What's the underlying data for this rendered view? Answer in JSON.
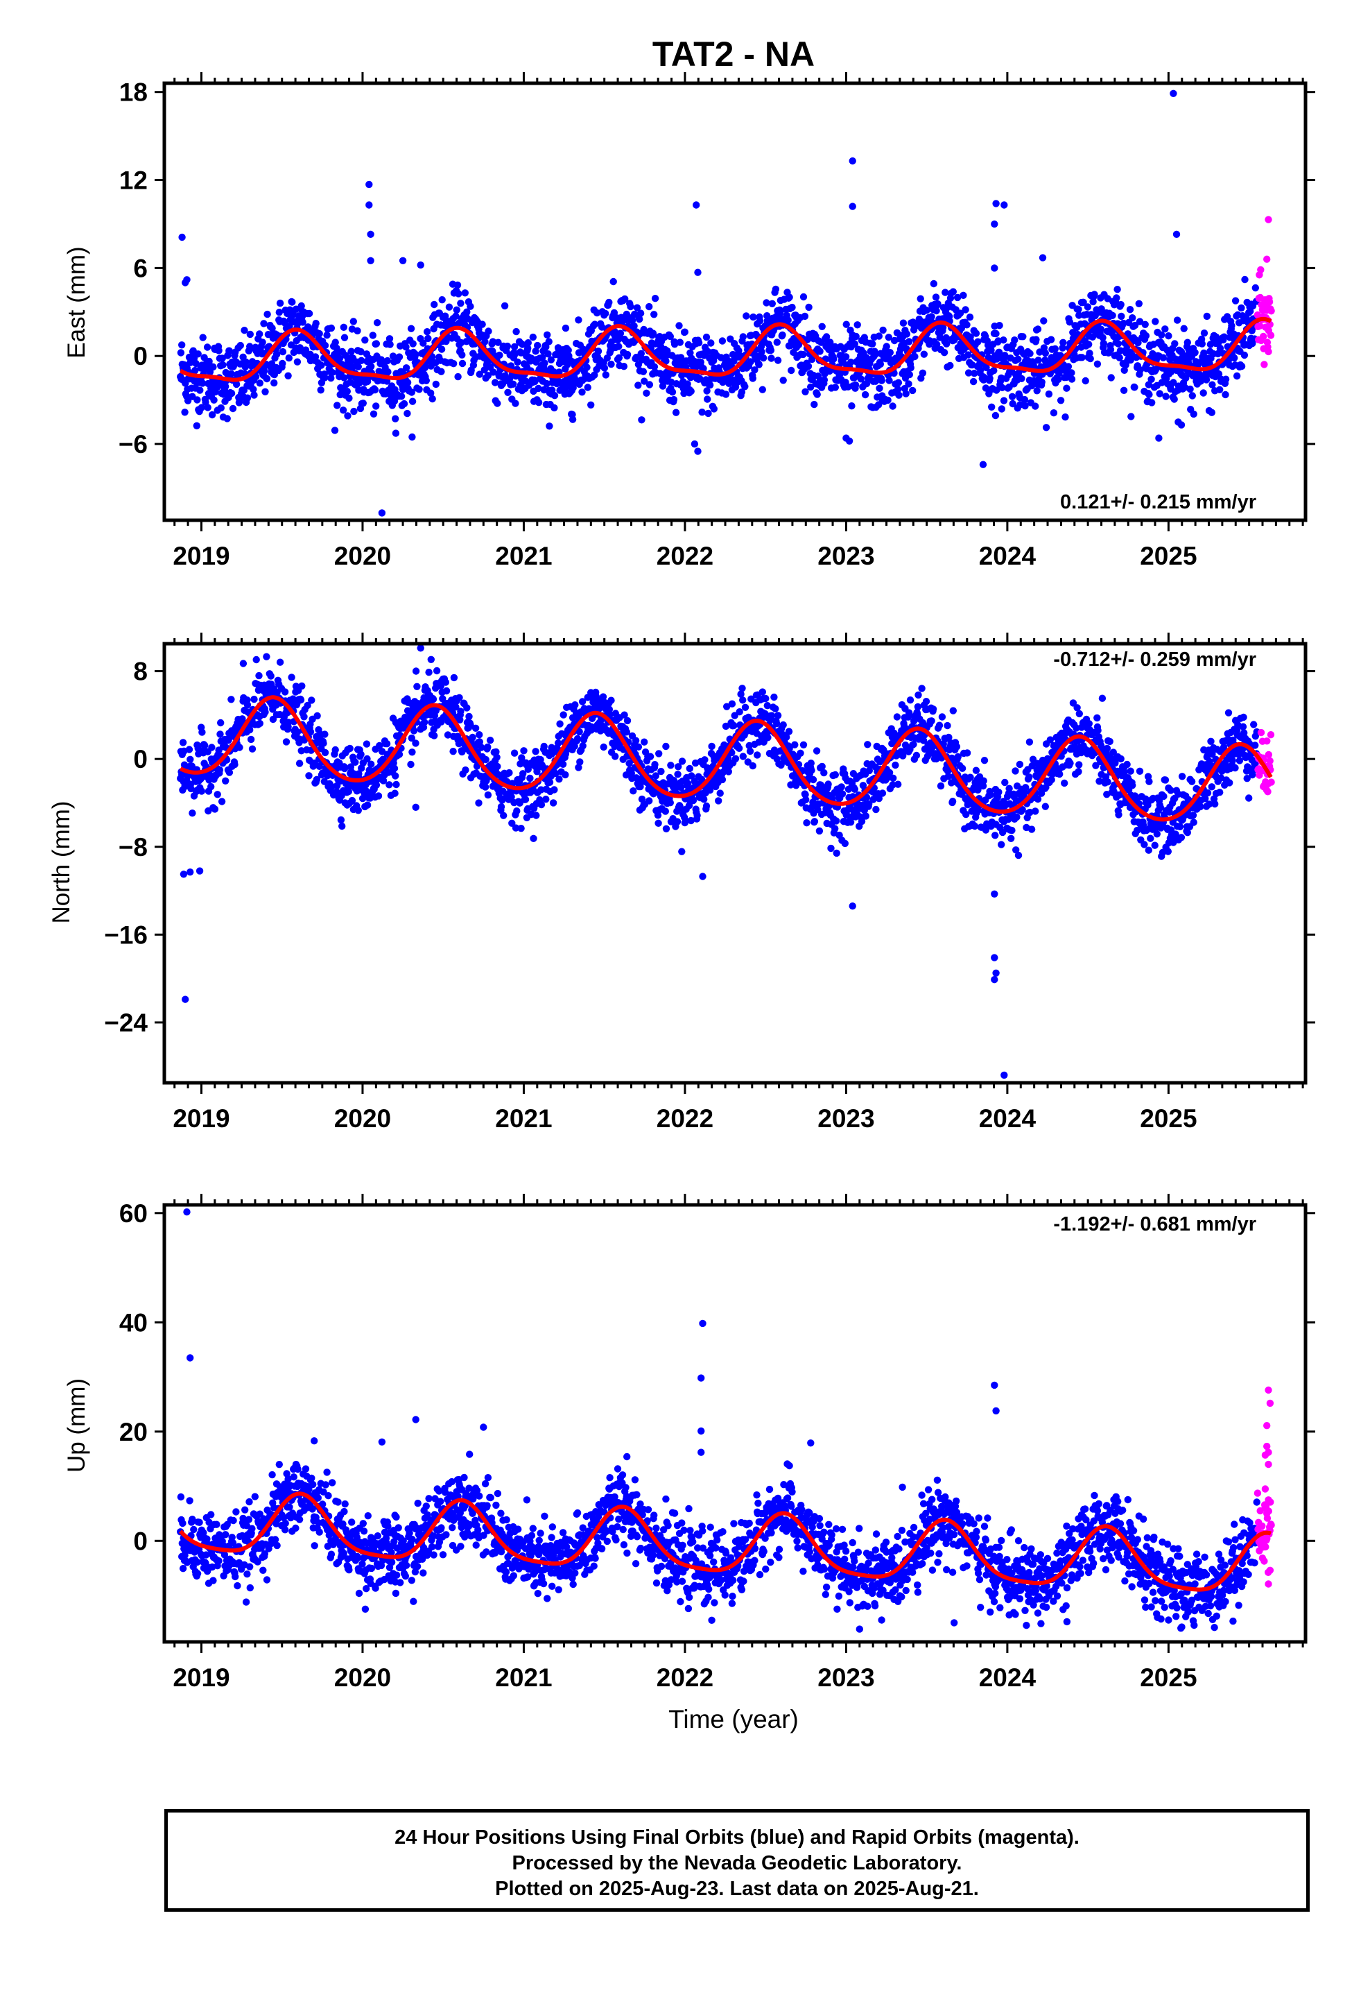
{
  "title": "TAT2 - NA",
  "x_axis_title": "Time (year)",
  "colors": {
    "final": "#0000ff",
    "rapid": "#ff00ff",
    "model": "#ff0000",
    "frame": "#000000"
  },
  "footer": {
    "line1": "24 Hour Positions Using Final Orbits (blue) and Rapid Orbits (magenta).",
    "line2": "Processed by the Nevada Geodetic Laboratory.",
    "line3": "Plotted on 2025-Aug-23. Last data on 2025-Aug-21."
  },
  "chart_data": [
    {
      "type": "scatter",
      "component": "east",
      "ylabel": "East (mm)",
      "xlim": [
        2018.77,
        2025.85
      ],
      "ylim": [
        -11.2,
        18.6
      ],
      "xticks": [
        2019,
        2020,
        2021,
        2022,
        2023,
        2024,
        2025
      ],
      "yticks": [
        -6,
        0,
        6,
        12,
        18
      ],
      "rate_label": "0.121+/- 0.215 mm/yr",
      "rate_position": "bottom-right",
      "model": {
        "slope": 0.121,
        "offset": 0.0,
        "t0": 2022.0,
        "annual_amp": 1.6,
        "annual_phase_peak": 2019.6,
        "semi_amp": 0.5,
        "semi_phase": 0.3
      },
      "noise_sd": 1.3,
      "start": 2018.87,
      "end_final": 2025.55,
      "end_rapid": 2025.64,
      "outliers": [
        [
          2018.88,
          8.1
        ],
        [
          2018.9,
          5.0
        ],
        [
          2018.91,
          5.2
        ],
        [
          2020.04,
          11.7
        ],
        [
          2020.04,
          10.3
        ],
        [
          2020.05,
          8.3
        ],
        [
          2020.05,
          6.5
        ],
        [
          2020.12,
          -10.7
        ],
        [
          2020.25,
          6.5
        ],
        [
          2020.36,
          6.2
        ],
        [
          2022.07,
          10.3
        ],
        [
          2022.08,
          5.7
        ],
        [
          2022.08,
          -6.5
        ],
        [
          2022.06,
          -6.0
        ],
        [
          2023.04,
          13.3
        ],
        [
          2023.04,
          10.2
        ],
        [
          2023.0,
          -5.6
        ],
        [
          2023.02,
          -5.8
        ],
        [
          2023.93,
          10.4
        ],
        [
          2023.98,
          10.3
        ],
        [
          2023.92,
          9.0
        ],
        [
          2023.92,
          6.0
        ],
        [
          2023.85,
          -7.4
        ],
        [
          2024.22,
          6.7
        ],
        [
          2025.03,
          17.9
        ],
        [
          2025.05,
          8.3
        ],
        [
          2024.94,
          -5.6
        ],
        [
          2025.08,
          -4.7
        ]
      ],
      "rapid_outliers": [
        [
          2025.62,
          9.3
        ],
        [
          2025.61,
          6.6
        ],
        [
          2025.59,
          0.5
        ],
        [
          2025.62,
          0.3
        ]
      ]
    },
    {
      "type": "scatter",
      "component": "north",
      "ylabel": "North (mm)",
      "xlim": [
        2018.77,
        2025.85
      ],
      "ylim": [
        -29.5,
        10.5
      ],
      "xticks": [
        2019,
        2020,
        2021,
        2022,
        2023,
        2024,
        2025
      ],
      "yticks": [
        -24,
        -16,
        -8,
        0,
        8
      ],
      "rate_label": "-0.712+/- 0.259 mm/yr",
      "rate_position": "top-right",
      "model": {
        "slope": -0.712,
        "offset": -0.2,
        "t0": 2022.0,
        "annual_amp": 3.6,
        "annual_phase_peak": 2019.45,
        "semi_amp": 0.4,
        "semi_phase": 0.1
      },
      "noise_sd": 1.5,
      "start": 2018.87,
      "end_final": 2025.55,
      "end_rapid": 2025.64,
      "outliers": [
        [
          2018.89,
          -10.5
        ],
        [
          2018.93,
          -10.3
        ],
        [
          2018.99,
          -10.2
        ],
        [
          2018.9,
          -21.9
        ],
        [
          2020.36,
          10.1
        ],
        [
          2020.33,
          -4.4
        ],
        [
          2022.11,
          -10.7
        ],
        [
          2023.04,
          -13.4
        ],
        [
          2023.92,
          -12.3
        ],
        [
          2023.92,
          -18.1
        ],
        [
          2023.93,
          -19.5
        ],
        [
          2023.92,
          -20.1
        ],
        [
          2023.98,
          -28.8
        ],
        [
          2019.26,
          8.7
        ]
      ],
      "rapid_outliers": []
    },
    {
      "type": "scatter",
      "component": "up",
      "ylabel": "Up (mm)",
      "xlim": [
        2018.77,
        2025.85
      ],
      "ylim": [
        -18.5,
        61.5
      ],
      "xticks": [
        2019,
        2020,
        2021,
        2022,
        2023,
        2024,
        2025
      ],
      "yticks": [
        0,
        20,
        40,
        60
      ],
      "rate_label": "-1.192+/- 0.681 mm/yr",
      "rate_position": "top-right",
      "model": {
        "slope": -1.192,
        "offset": -0.8,
        "t0": 2022.0,
        "annual_amp": 5.4,
        "annual_phase_peak": 2019.62,
        "semi_amp": 1.2,
        "semi_phase": 0.2
      },
      "noise_sd": 3.3,
      "start": 2018.87,
      "end_final": 2025.55,
      "end_rapid": 2025.64,
      "outliers": [
        [
          2018.91,
          60.2
        ],
        [
          2018.93,
          33.5
        ],
        [
          2022.11,
          39.8
        ],
        [
          2022.1,
          29.8
        ],
        [
          2022.1,
          20.1
        ],
        [
          2022.1,
          16.2
        ],
        [
          2023.92,
          28.5
        ],
        [
          2023.93,
          23.8
        ],
        [
          2020.33,
          22.2
        ],
        [
          2020.75,
          20.8
        ],
        [
          2019.7,
          18.3
        ],
        [
          2020.12,
          18.1
        ],
        [
          2022.78,
          17.9
        ],
        [
          2021.64,
          15.4
        ],
        [
          2023.22,
          -14.5
        ],
        [
          2023.67,
          -15.0
        ],
        [
          2024.37,
          -14.8
        ],
        [
          2025.0,
          -14.5
        ],
        [
          2025.4,
          -14.7
        ]
      ],
      "rapid_outliers": [
        [
          2025.62,
          27.6
        ],
        [
          2025.63,
          25.2
        ],
        [
          2025.61,
          21.1
        ],
        [
          2025.61,
          17.3
        ],
        [
          2025.62,
          16.2
        ],
        [
          2025.6,
          15.7
        ],
        [
          2025.62,
          14.0
        ],
        [
          2025.6,
          9.5
        ],
        [
          2025.62,
          7.5
        ],
        [
          2025.61,
          5.0
        ],
        [
          2025.63,
          -5.4
        ],
        [
          2025.62,
          -7.9
        ]
      ]
    }
  ]
}
